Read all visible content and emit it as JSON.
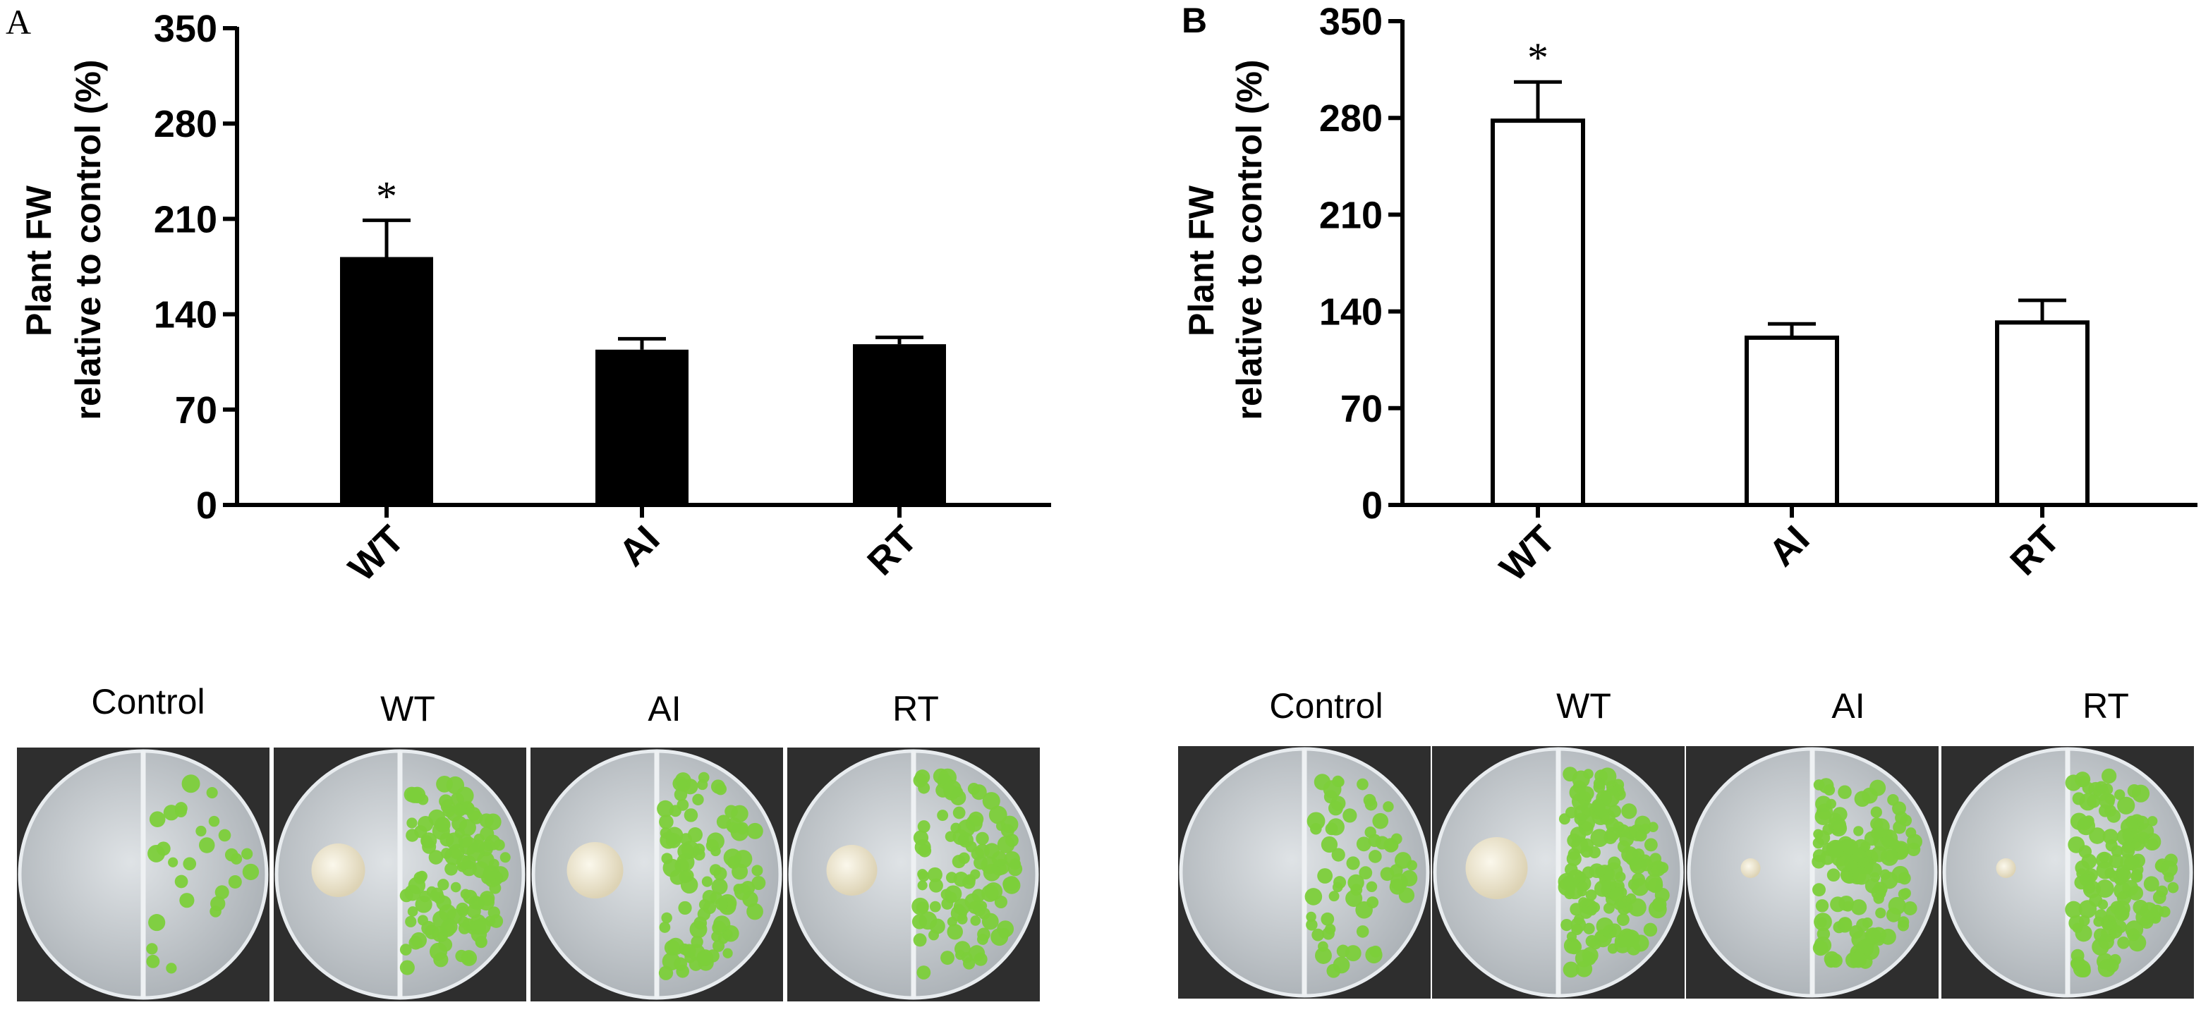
{
  "chart_data": [
    {
      "type": "bar",
      "panel_label": "A",
      "categories": [
        "WT",
        "AI",
        "RT"
      ],
      "values": [
        182,
        114,
        118
      ],
      "errors": [
        27,
        8,
        5
      ],
      "significance": [
        "*",
        "",
        ""
      ],
      "ylabel_line1": "Plant FW",
      "ylabel_line2": "relative to control (%)",
      "ylim": [
        0,
        350
      ],
      "yticks": [
        "0",
        "70",
        "140",
        "210",
        "280",
        "350"
      ],
      "bar_color": "#000000",
      "bar_style": "filled"
    },
    {
      "type": "bar",
      "panel_label": "B",
      "categories": [
        "WT",
        "AI",
        "RT"
      ],
      "values": [
        278,
        121,
        132
      ],
      "errors": [
        28,
        10,
        16
      ],
      "significance": [
        "*",
        "",
        ""
      ],
      "ylabel_line1": "Plant FW",
      "ylabel_line2": "relative to control (%)",
      "ylim": [
        0,
        350
      ],
      "yticks": [
        "0",
        "70",
        "140",
        "210",
        "280",
        "350"
      ],
      "bar_color": "#ffffff",
      "bar_style": "outline"
    }
  ],
  "photos": {
    "a": {
      "labels": [
        "Control",
        "WT",
        "AI",
        "RT"
      ]
    },
    "b": {
      "labels": [
        "Control",
        "WT",
        "AI",
        "RT"
      ]
    }
  },
  "colors": {
    "photo_background": "#2e2e2e",
    "agar": "#c9ced3",
    "seedling_green": "#7ccf3a",
    "colony": "#efe9d4"
  }
}
